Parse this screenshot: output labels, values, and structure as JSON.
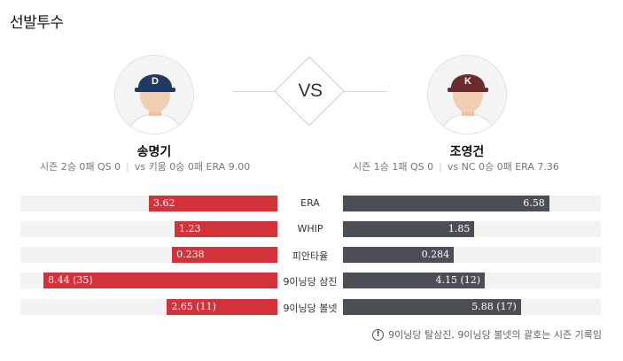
{
  "title": "선발투수",
  "vs_label": "VS",
  "home": {
    "name": "송명기",
    "season_stats": "시즌 2승 0패 QS 0",
    "vs_stats": "vs 키움 0승 0패 ERA 9.00",
    "cap_color": "#1f3b63",
    "logo_letter": "D"
  },
  "away": {
    "name": "조영건",
    "season_stats": "시즌 1승 1패 QS 0",
    "vs_stats": "vs NC 0승 0패 ERA 7.36",
    "cap_color": "#6b2a2e",
    "logo_letter": "K"
  },
  "colors": {
    "home_bar": "#d3323a",
    "away_bar": "#4c4e55",
    "track": "#f2f2f2"
  },
  "rows": [
    {
      "label": "ERA",
      "left": "3.62",
      "right": "6.58",
      "left_fill": 0.5,
      "right_fill": 0.8
    },
    {
      "label": "WHIP",
      "left": "1.23",
      "right": "1.85",
      "left_fill": 0.4,
      "right_fill": 0.51
    },
    {
      "label": "피안타율",
      "left": "0.238",
      "right": "0.284",
      "left_fill": 0.41,
      "right_fill": 0.43
    },
    {
      "label": "9이닝당 삼진",
      "left": "8.44 (35)",
      "right": "4.15 (12)",
      "left_fill": 0.91,
      "right_fill": 0.55
    },
    {
      "label": "9이닝당 볼넷",
      "left": "2.65 (11)",
      "right": "5.88 (17)",
      "left_fill": 0.43,
      "right_fill": 0.69
    }
  ],
  "footnote": {
    "icon": "info-icon",
    "text": "9이닝당 탈삼진, 9이닝당 볼넷의 괄호는 시즌 기록임"
  }
}
